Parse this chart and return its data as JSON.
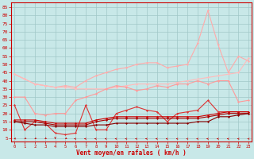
{
  "xlabel": "Vent moyen/en rafales ( km/h )",
  "x_ticks": [
    0,
    1,
    2,
    3,
    4,
    5,
    6,
    7,
    8,
    9,
    10,
    11,
    12,
    13,
    14,
    15,
    16,
    17,
    18,
    19,
    20,
    21,
    22,
    23
  ],
  "y_ticks": [
    5,
    10,
    15,
    20,
    25,
    30,
    35,
    40,
    45,
    50,
    55,
    60,
    65,
    70,
    75,
    80,
    85
  ],
  "ylim": [
    3,
    88
  ],
  "xlim": [
    -0.3,
    23.3
  ],
  "background_color": "#c8e8e8",
  "grid_color": "#a0c8c8",
  "axis_color": "#cc0000",
  "series": [
    {
      "name": "rafales_max_peak",
      "color": "#ffaaaa",
      "lw": 0.8,
      "marker": "D",
      "ms": 1.5,
      "data": [
        44,
        41,
        38,
        37,
        36,
        37,
        36,
        40,
        43,
        45,
        47,
        48,
        50,
        51,
        51,
        48,
        49,
        50,
        63,
        83,
        62,
        45,
        55,
        52
      ]
    },
    {
      "name": "rafales_mean_line",
      "color": "#ffbbbb",
      "lw": 0.8,
      "marker": "D",
      "ms": 1.5,
      "data": [
        44,
        41,
        38,
        37,
        36,
        36,
        35,
        35,
        35,
        35,
        36,
        37,
        38,
        38,
        38,
        38,
        39,
        40,
        41,
        42,
        43,
        44,
        45,
        54
      ]
    },
    {
      "name": "vent_max_pink",
      "color": "#ff9999",
      "lw": 0.8,
      "marker": "D",
      "ms": 1.5,
      "data": [
        30,
        30,
        20,
        19,
        20,
        20,
        28,
        30,
        32,
        35,
        37,
        36,
        34,
        35,
        37,
        36,
        38,
        38,
        40,
        38,
        40,
        40,
        27,
        28
      ]
    },
    {
      "name": "vent_max_dark",
      "color": "#dd3333",
      "lw": 0.8,
      "marker": "D",
      "ms": 1.5,
      "data": [
        25,
        10,
        15,
        14,
        8,
        7,
        8,
        25,
        10,
        10,
        20,
        22,
        24,
        22,
        21,
        15,
        20,
        21,
        22,
        28,
        21,
        21,
        21,
        21
      ]
    },
    {
      "name": "vent_moy",
      "color": "#cc0000",
      "lw": 0.8,
      "marker": "D",
      "ms": 1.5,
      "data": [
        16,
        16,
        16,
        15,
        14,
        14,
        14,
        14,
        16,
        17,
        18,
        18,
        18,
        18,
        18,
        18,
        18,
        18,
        18,
        19,
        20,
        21,
        21,
        21
      ]
    },
    {
      "name": "vent_moy2",
      "color": "#aa0000",
      "lw": 0.8,
      "marker": "D",
      "ms": 1.5,
      "data": [
        15,
        15,
        15,
        14,
        13,
        13,
        13,
        13,
        15,
        16,
        17,
        17,
        17,
        17,
        17,
        17,
        17,
        17,
        17,
        18,
        19,
        20,
        20,
        20
      ]
    },
    {
      "name": "vent_min",
      "color": "#880000",
      "lw": 0.8,
      "marker": "D",
      "ms": 1.5,
      "data": [
        15,
        14,
        13,
        13,
        12,
        12,
        12,
        12,
        13,
        13,
        14,
        14,
        14,
        14,
        14,
        14,
        14,
        14,
        15,
        15,
        18,
        18,
        19,
        20
      ]
    }
  ],
  "arrow_color": "#cc0000",
  "wind_dirs": [
    210,
    200,
    200,
    195,
    180,
    200,
    270,
    270,
    270,
    270,
    270,
    270,
    270,
    270,
    270,
    270,
    280,
    280,
    280,
    280,
    290,
    290,
    300,
    300
  ]
}
